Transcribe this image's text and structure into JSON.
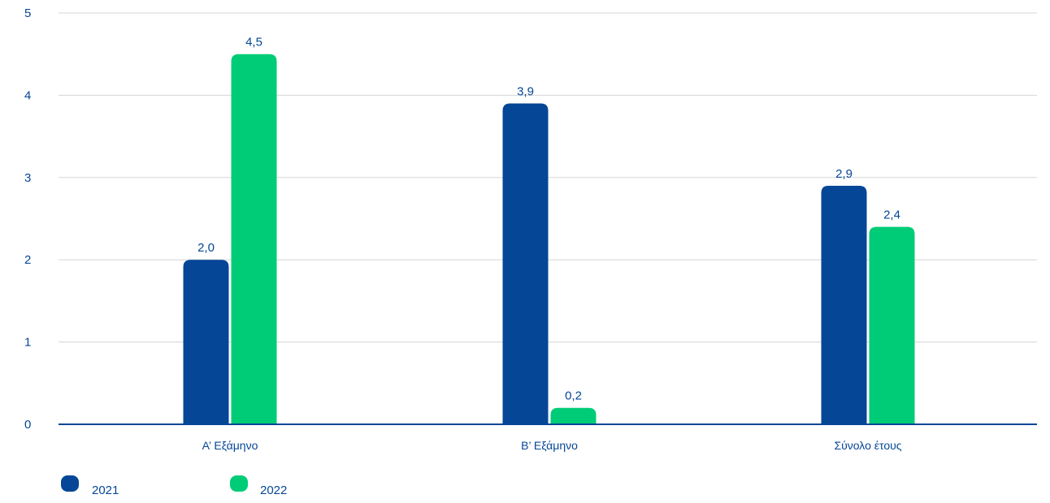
{
  "chart_data": {
    "type": "bar",
    "title": "",
    "xlabel": "",
    "ylabel": "",
    "categories": [
      "Α’ Εξάμηνο",
      "Β’ Εξάμηνο",
      "Σύνολο έτους"
    ],
    "series": [
      {
        "name": "2021",
        "values": [
          2.0,
          3.9,
          2.9
        ],
        "labels": [
          "2,0",
          "3,9",
          "2,9"
        ],
        "color": "#054696"
      },
      {
        "name": "2022",
        "values": [
          4.5,
          0.2,
          2.4
        ],
        "labels": [
          "4,5",
          "0,2",
          "2,4"
        ],
        "color": "#00cc77"
      }
    ],
    "ylim": [
      0,
      5
    ],
    "yticks": [
      0,
      1,
      2,
      3,
      4,
      5
    ],
    "ytick_labels": [
      "0",
      "1",
      "2",
      "3",
      "4",
      "5"
    ],
    "grid": true,
    "legend_position": "bottom-left",
    "colors": {
      "text": "#054696",
      "axis": "#054696",
      "grid": "#d5d5d5"
    }
  }
}
